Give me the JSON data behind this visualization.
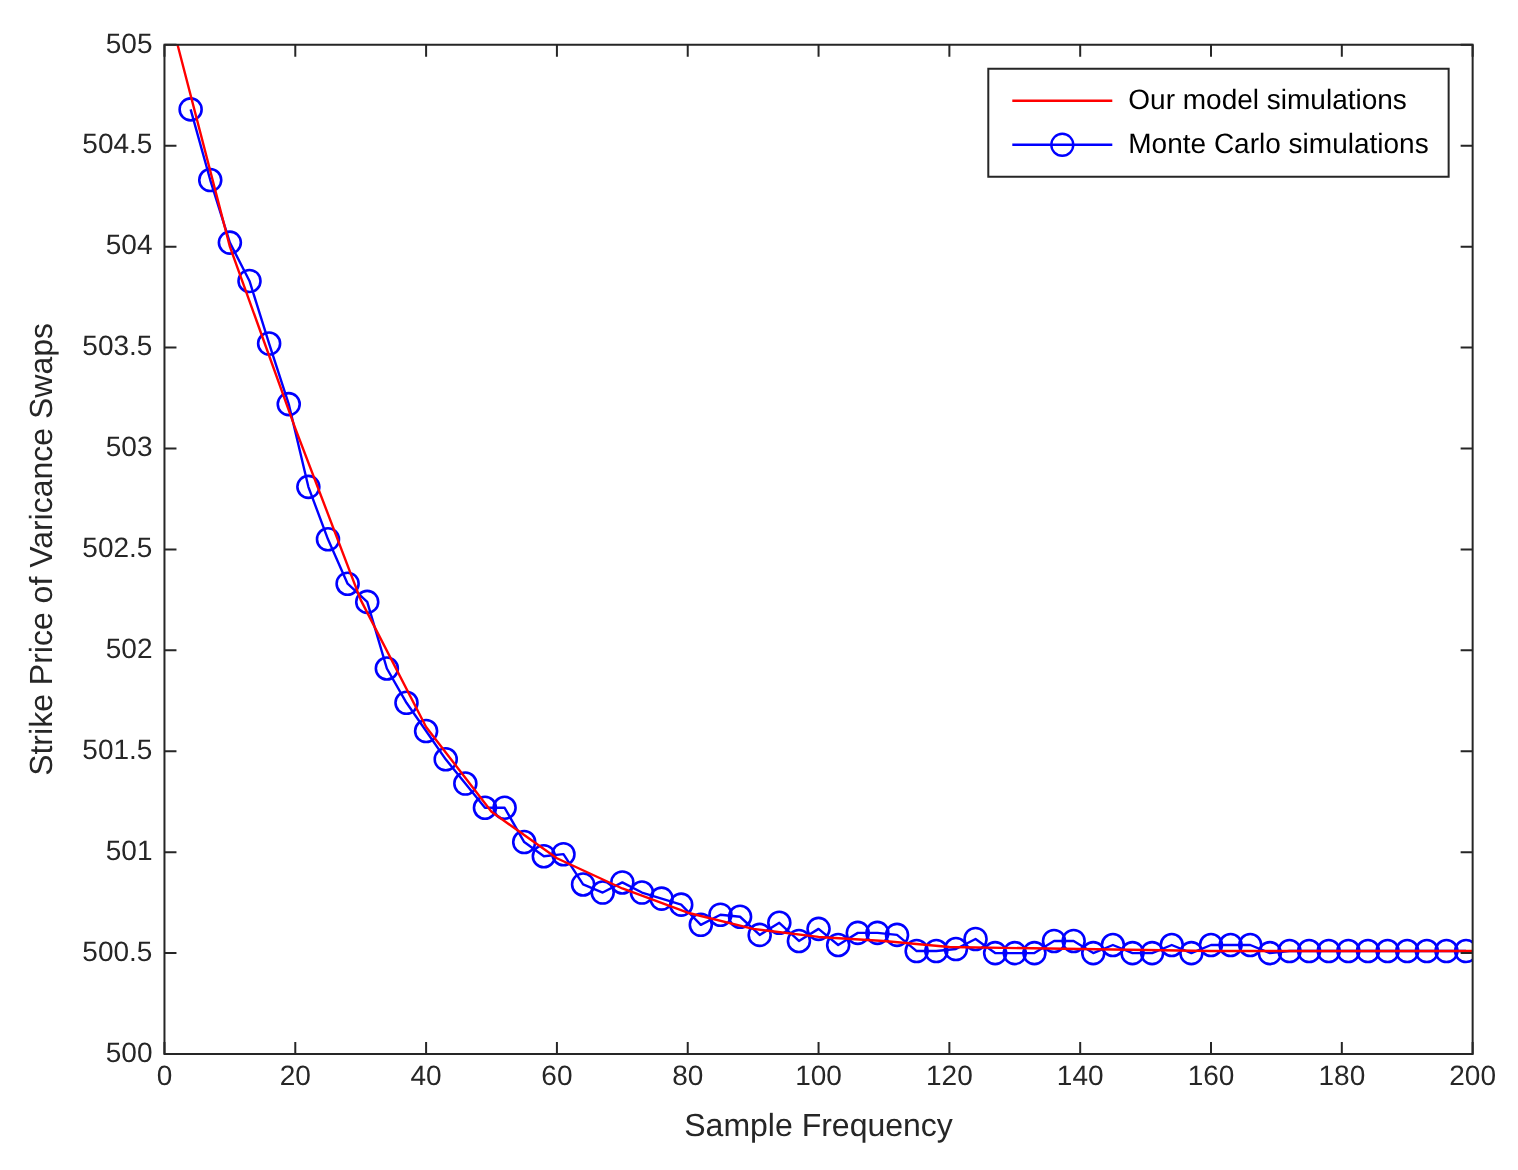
{
  "chart_data": {
    "type": "line",
    "xlabel": "Sample Frequency",
    "ylabel": "Strike Price of Varicance Swaps",
    "xlim": [
      0,
      200
    ],
    "xticks": [
      0,
      20,
      40,
      60,
      80,
      100,
      120,
      140,
      160,
      180,
      200
    ],
    "ylim": [
      500,
      505
    ],
    "yticks": [
      500,
      500.5,
      501,
      501.5,
      502,
      502.5,
      503,
      503.5,
      504,
      504.5,
      505
    ],
    "legend": "top right",
    "line_style": "solid",
    "series": [
      {
        "name": "Our model simulations",
        "color": "#ff0000",
        "marker": "none",
        "x": [
          2,
          10,
          20,
          30,
          40,
          50,
          60,
          70,
          80,
          90,
          100,
          110,
          120,
          140,
          160,
          180,
          200
        ],
        "values": [
          505.0,
          504.0,
          503.1,
          502.25,
          501.62,
          501.2,
          500.97,
          500.82,
          500.7,
          500.62,
          500.58,
          500.56,
          500.53,
          500.52,
          500.51,
          500.51,
          500.51
        ]
      },
      {
        "name": "Monte Carlo simulations",
        "color": "#0000ff",
        "marker": "circle",
        "x": [
          4,
          7,
          10,
          13,
          16,
          19,
          22,
          25,
          28,
          31,
          34,
          37,
          40,
          43,
          46,
          49,
          52,
          55,
          58,
          61,
          64,
          67,
          70,
          73,
          76,
          79,
          82,
          85,
          88,
          91,
          94,
          97,
          100,
          103,
          106,
          109,
          112,
          115,
          118,
          121,
          124,
          127,
          130,
          133,
          136,
          139,
          142,
          145,
          148,
          151,
          154,
          157,
          160,
          163,
          166,
          169,
          172,
          175,
          178,
          181,
          184,
          187,
          190,
          193,
          196,
          199
        ],
        "values": [
          504.68,
          504.33,
          504.02,
          503.83,
          503.52,
          503.22,
          502.81,
          502.55,
          502.33,
          502.24,
          501.91,
          501.74,
          501.6,
          501.46,
          501.34,
          501.22,
          501.22,
          501.05,
          500.98,
          500.99,
          500.84,
          500.8,
          500.85,
          500.8,
          500.77,
          500.74,
          500.64,
          500.69,
          500.68,
          500.59,
          500.65,
          500.56,
          500.62,
          500.54,
          500.6,
          500.6,
          500.59,
          500.51,
          500.51,
          500.52,
          500.57,
          500.5,
          500.5,
          500.5,
          500.56,
          500.56,
          500.5,
          500.54,
          500.5,
          500.5,
          500.54,
          500.5,
          500.54,
          500.54,
          500.54,
          500.5,
          500.51,
          500.51,
          500.51,
          500.51,
          500.51,
          500.51,
          500.51,
          500.51,
          500.51,
          500.51
        ]
      }
    ]
  }
}
